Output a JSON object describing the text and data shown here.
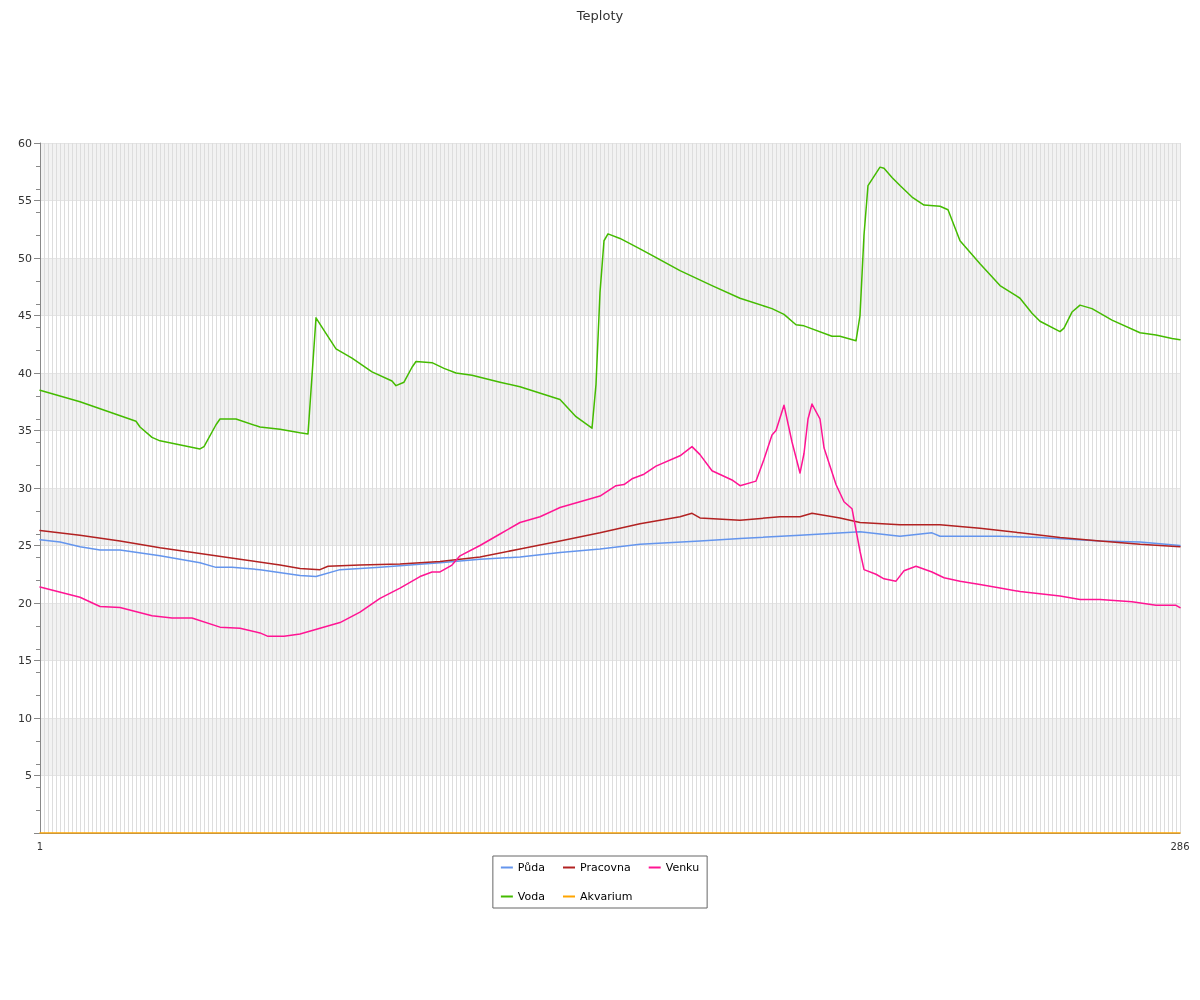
{
  "chart_data": {
    "type": "line",
    "title": "Teploty",
    "xlim": [
      1,
      286
    ],
    "xticks": [
      1,
      {
        "value": 2,
        "label": null
      },
      {
        "value": 3,
        "label": null
      },
      {
        "value": 4,
        "label": null
      },
      {
        "value": 5,
        "label": null
      },
      {
        "value": 6,
        "label": null
      },
      {
        "value": 7,
        "label": null
      },
      {
        "value": 8,
        "label": null
      },
      {
        "value": 9,
        "label": null
      },
      {
        "value": 10,
        "label": null
      },
      {
        "value": 11,
        "label": null
      },
      {
        "value": 12,
        "label": null
      },
      {
        "value": 13,
        "label": null
      },
      {
        "value": 14,
        "label": null
      },
      {
        "value": 15,
        "label": null
      },
      {
        "value": 16,
        "label": null
      },
      {
        "value": 17,
        "label": null
      },
      {
        "value": 18,
        "label": null
      },
      {
        "value": 19,
        "label": null
      },
      {
        "value": 20,
        "label": null
      },
      {
        "value": 21,
        "label": null
      },
      {
        "value": 22,
        "label": null
      },
      {
        "value": 23,
        "label": null
      },
      {
        "value": 24,
        "label": null
      },
      {
        "value": 25,
        "label": null
      },
      {
        "value": 26,
        "label": null
      },
      {
        "value": 27,
        "label": null
      },
      {
        "value": 28,
        "label": null
      },
      {
        "value": 29,
        "label": null
      },
      {
        "value": 30,
        "label": null
      },
      {
        "value": 31,
        "label": null
      },
      {
        "value": 32,
        "label": null
      },
      {
        "value": 33,
        "label": null
      },
      {
        "value": 34,
        "label": null
      },
      {
        "value": 35,
        "label": null
      },
      {
        "value": 36,
        "label": null
      },
      {
        "value": 37,
        "label": null
      },
      {
        "value": 38,
        "label": null
      },
      {
        "value": 39,
        "label": null
      },
      {
        "value": 40,
        "label": null
      },
      {
        "value": 41,
        "label": null
      },
      {
        "value": 42,
        "label": null
      },
      {
        "value": 43,
        "label": null
      },
      {
        "value": 44,
        "label": null
      },
      {
        "value": 45,
        "label": null
      },
      {
        "value": 46,
        "label": null
      },
      {
        "value": 47,
        "label": null
      },
      {
        "value": 48,
        "label": null
      },
      {
        "value": 49,
        "label": null
      },
      {
        "value": 50,
        "label": null
      },
      {
        "value": 51,
        "label": null
      },
      {
        "value": 52,
        "label": null
      },
      {
        "value": 53,
        "label": null
      },
      {
        "value": 54,
        "label": null
      },
      {
        "value": 55,
        "label": null
      },
      {
        "value": 56,
        "label": null
      },
      {
        "value": 57,
        "label": null
      },
      {
        "value": 58,
        "label": null
      },
      {
        "value": 59,
        "label": null
      },
      {
        "value": 60,
        "label": null
      },
      {
        "value": 61,
        "label": null
      },
      {
        "value": 62,
        "label": null
      },
      {
        "value": 63,
        "label": null
      },
      {
        "value": 64,
        "label": null
      },
      {
        "value": 65,
        "label": null
      },
      {
        "value": 66,
        "label": null
      },
      {
        "value": 67,
        "label": null
      },
      {
        "value": 68,
        "label": null
      },
      {
        "value": 69,
        "label": null
      },
      {
        "value": 70,
        "label": null
      },
      {
        "value": 71,
        "label": null
      },
      {
        "value": 72,
        "label": null
      },
      {
        "value": 73,
        "label": null
      },
      {
        "value": 74,
        "label": null
      },
      {
        "value": 75,
        "label": null
      },
      {
        "value": 76,
        "label": null
      },
      {
        "value": 77,
        "label": null
      },
      {
        "value": 78,
        "label": null
      },
      {
        "value": 79,
        "label": null
      },
      {
        "value": 80,
        "label": null
      },
      {
        "value": 81,
        "label": null
      },
      {
        "value": 82,
        "label": null
      },
      {
        "value": 83,
        "label": null
      },
      {
        "value": 84,
        "label": null
      },
      {
        "value": 85,
        "label": null
      },
      {
        "value": 86,
        "label": null
      },
      {
        "value": 87,
        "label": null
      },
      {
        "value": 88,
        "label": null
      },
      {
        "value": 89,
        "label": null
      },
      {
        "value": 90,
        "label": null
      },
      {
        "value": 91,
        "label": null
      },
      {
        "value": 92,
        "label": null
      },
      {
        "value": 93,
        "label": null
      },
      {
        "value": 94,
        "label": null
      },
      {
        "value": 95,
        "label": null
      },
      {
        "value": 96,
        "label": null
      },
      {
        "value": 97,
        "label": null
      },
      {
        "value": 98,
        "label": null
      },
      {
        "value": 99,
        "label": null
      },
      {
        "value": 100,
        "label": null
      },
      {
        "value": 101,
        "label": null
      },
      {
        "value": 102,
        "label": null
      },
      {
        "value": 103,
        "label": null
      },
      {
        "value": 104,
        "label": null
      },
      {
        "value": 105,
        "label": null
      },
      {
        "value": 106,
        "label": null
      },
      {
        "value": 107,
        "label": null
      },
      {
        "value": 108,
        "label": null
      },
      {
        "value": 109,
        "label": null
      },
      {
        "value": 110,
        "label": null
      },
      {
        "value": 111,
        "label": null
      },
      {
        "value": 112,
        "label": null
      },
      {
        "value": 113,
        "label": null
      },
      {
        "value": 114,
        "label": null
      },
      {
        "value": 115,
        "label": null
      },
      {
        "value": 116,
        "label": null
      },
      {
        "value": 117,
        "label": null
      },
      {
        "value": 118,
        "label": null
      },
      {
        "value": 119,
        "label": null
      },
      {
        "value": 120,
        "label": null
      },
      {
        "value": 121,
        "label": null
      },
      {
        "value": 122,
        "label": null
      },
      {
        "value": 123,
        "label": null
      },
      {
        "value": 124,
        "label": null
      },
      {
        "value": 125,
        "label": null
      },
      {
        "value": 126,
        "label": null
      },
      {
        "value": 127,
        "label": null
      },
      {
        "value": 128,
        "label": null
      },
      {
        "value": 129,
        "label": null
      },
      {
        "value": 130,
        "label": null
      },
      {
        "value": 131,
        "label": null
      },
      {
        "value": 132,
        "label": null
      },
      {
        "value": 133,
        "label": null
      },
      {
        "value": 134,
        "label": null
      },
      {
        "value": 135,
        "label": null
      },
      {
        "value": 136,
        "label": null
      },
      {
        "value": 137,
        "label": null
      },
      {
        "value": 138,
        "label": null
      },
      {
        "value": 139,
        "label": null
      },
      {
        "value": 140,
        "label": null
      },
      {
        "value": 141,
        "label": null
      },
      {
        "value": 142,
        "label": null
      },
      {
        "value": 143,
        "label": null
      },
      {
        "value": 144,
        "label": null
      },
      {
        "value": 145,
        "label": null
      },
      {
        "value": 146,
        "label": null
      },
      {
        "value": 147,
        "label": null
      },
      {
        "value": 148,
        "label": null
      },
      {
        "value": 149,
        "label": null
      },
      {
        "value": 150,
        "label": null
      },
      {
        "value": 151,
        "label": null
      },
      {
        "value": 152,
        "label": null
      },
      {
        "value": 153,
        "label": null
      },
      {
        "value": 154,
        "label": null
      },
      {
        "value": 155,
        "label": null
      },
      {
        "value": 156,
        "label": null
      },
      {
        "value": 157,
        "label": null
      },
      {
        "value": 158,
        "label": null
      },
      {
        "value": 159,
        "label": null
      },
      {
        "value": 160,
        "label": null
      },
      {
        "value": 161,
        "label": null
      },
      {
        "value": 162,
        "label": null
      },
      {
        "value": 163,
        "label": null
      },
      {
        "value": 164,
        "label": null
      },
      {
        "value": 165,
        "label": null
      },
      {
        "value": 166,
        "label": null
      },
      {
        "value": 167,
        "label": null
      },
      {
        "value": 168,
        "label": null
      },
      {
        "value": 169,
        "label": null
      },
      {
        "value": 170,
        "label": null
      },
      {
        "value": 171,
        "label": null
      },
      {
        "value": 172,
        "label": null
      },
      {
        "value": 173,
        "label": null
      },
      {
        "value": 174,
        "label": null
      },
      {
        "value": 175,
        "label": null
      },
      {
        "value": 176,
        "label": null
      },
      {
        "value": 177,
        "label": null
      },
      {
        "value": 178,
        "label": null
      },
      {
        "value": 179,
        "label": null
      },
      {
        "value": 180,
        "label": null
      },
      {
        "value": 181,
        "label": null
      },
      {
        "value": 182,
        "label": null
      },
      {
        "value": 183,
        "label": null
      },
      {
        "value": 184,
        "label": null
      },
      {
        "value": 185,
        "label": null
      },
      {
        "value": 186,
        "label": null
      },
      {
        "value": 187,
        "label": null
      },
      {
        "value": 188,
        "label": null
      },
      {
        "value": 189,
        "label": null
      },
      {
        "value": 190,
        "label": null
      },
      {
        "value": 191,
        "label": null
      },
      {
        "value": 192,
        "label": null
      },
      {
        "value": 193,
        "label": null
      },
      {
        "value": 194,
        "label": null
      },
      {
        "value": 195,
        "label": null
      },
      {
        "value": 196,
        "label": null
      },
      {
        "value": 197,
        "label": null
      },
      {
        "value": 198,
        "label": null
      },
      {
        "value": 199,
        "label": null
      },
      {
        "value": 200,
        "label": null
      },
      {
        "value": 201,
        "label": null
      },
      {
        "value": 202,
        "label": null
      },
      {
        "value": 203,
        "label": null
      },
      {
        "value": 204,
        "label": null
      },
      {
        "value": 205,
        "label": null
      },
      {
        "value": 206,
        "label": null
      },
      {
        "value": 207,
        "label": null
      },
      {
        "value": 208,
        "label": null
      },
      {
        "value": 209,
        "label": null
      },
      {
        "value": 210,
        "label": null
      },
      {
        "value": 211,
        "label": null
      },
      {
        "value": 212,
        "label": null
      },
      {
        "value": 213,
        "label": null
      },
      {
        "value": 214,
        "label": null
      },
      {
        "value": 215,
        "label": null
      },
      {
        "value": 216,
        "label": null
      },
      {
        "value": 217,
        "label": null
      },
      {
        "value": 218,
        "label": null
      },
      {
        "value": 219,
        "label": null
      },
      {
        "value": 220,
        "label": null
      },
      {
        "value": 221,
        "label": null
      },
      {
        "value": 222,
        "label": null
      },
      {
        "value": 223,
        "label": null
      },
      {
        "value": 224,
        "label": null
      },
      {
        "value": 225,
        "label": null
      },
      {
        "value": 226,
        "label": null
      },
      {
        "value": 227,
        "label": null
      },
      {
        "value": 228,
        "label": null
      },
      {
        "value": 229,
        "label": null
      },
      {
        "value": 230,
        "label": null
      },
      {
        "value": 231,
        "label": null
      },
      {
        "value": 232,
        "label": null
      },
      {
        "value": 233,
        "label": null
      },
      {
        "value": 234,
        "label": null
      },
      {
        "value": 235,
        "label": null
      },
      {
        "value": 236,
        "label": null
      },
      {
        "value": 237,
        "label": null
      },
      {
        "value": 238,
        "label": null
      },
      {
        "value": 239,
        "label": null
      },
      {
        "value": 240,
        "label": null
      },
      {
        "value": 241,
        "label": null
      },
      {
        "value": 242,
        "label": null
      },
      {
        "value": 243,
        "label": null
      },
      {
        "value": 244,
        "label": null
      },
      {
        "value": 245,
        "label": null
      },
      {
        "value": 246,
        "label": null
      },
      {
        "value": 247,
        "label": null
      },
      {
        "value": 248,
        "label": null
      },
      {
        "value": 249,
        "label": null
      },
      {
        "value": 250,
        "label": null
      },
      {
        "value": 251,
        "label": null
      },
      {
        "value": 252,
        "label": null
      },
      {
        "value": 253,
        "label": null
      },
      {
        "value": 254,
        "label": null
      },
      {
        "value": 255,
        "label": null
      },
      {
        "value": 256,
        "label": null
      },
      {
        "value": 257,
        "label": null
      },
      {
        "value": 258,
        "label": null
      },
      {
        "value": 259,
        "label": null
      },
      {
        "value": 260,
        "label": null
      },
      {
        "value": 261,
        "label": null
      },
      {
        "value": 262,
        "label": null
      },
      {
        "value": 263,
        "label": null
      },
      {
        "value": 264,
        "label": null
      },
      {
        "value": 265,
        "label": null
      },
      {
        "value": 266,
        "label": null
      },
      {
        "value": 267,
        "label": null
      },
      {
        "value": 268,
        "label": null
      },
      {
        "value": 269,
        "label": null
      },
      {
        "value": 270,
        "label": null
      },
      {
        "value": 271,
        "label": null
      },
      {
        "value": 272,
        "label": null
      },
      {
        "value": 273,
        "label": null
      },
      {
        "value": 274,
        "label": null
      },
      {
        "value": 275,
        "label": null
      },
      {
        "value": 276,
        "label": null
      },
      {
        "value": 277,
        "label": null
      },
      {
        "value": 278,
        "label": null
      },
      {
        "value": 279,
        "label": null
      },
      {
        "value": 280,
        "label": null
      },
      {
        "value": 281,
        "label": null
      },
      {
        "value": 282,
        "label": null
      },
      {
        "value": 283,
        "label": null
      },
      {
        "value": 284,
        "label": null
      },
      {
        "value": 285,
        "label": null
      },
      286
    ],
    "ylim": [
      0,
      60
    ],
    "yticks": [
      {
        "value": 0,
        "label": null
      },
      5,
      10,
      15,
      20,
      25,
      30,
      35,
      40,
      45,
      50,
      55,
      60
    ],
    "grid": true,
    "legend": "bottom",
    "marker": "none",
    "line_style": "solid",
    "series": [
      {
        "name": "Půda",
        "color": "#6495ed",
        "x": [
          1,
          6,
          11,
          16,
          21,
          31,
          41,
          45,
          49,
          56,
          66,
          70,
          76,
          86,
          101,
          111,
          121,
          131,
          141,
          151,
          166,
          176,
          191,
          206,
          211,
          216,
          224,
          226,
          241,
          251,
          266,
          276,
          286
        ],
        "values": [
          25.5,
          25.3,
          24.9,
          24.6,
          24.6,
          24.1,
          23.5,
          23.1,
          23.1,
          22.9,
          22.4,
          22.3,
          22.9,
          23.1,
          23.5,
          23.8,
          24.0,
          24.4,
          24.7,
          25.1,
          25.4,
          25.6,
          25.9,
          26.2,
          26.0,
          25.8,
          26.1,
          25.8,
          25.8,
          25.7,
          25.4,
          25.3,
          25.0
        ]
      },
      {
        "name": "Voda",
        "color": "#44bb00",
        "x": [
          1,
          11,
          25,
          26,
          29,
          31,
          41,
          42,
          45,
          46,
          50,
          56,
          61,
          66,
          68,
          70,
          72,
          75,
          79,
          84,
          89,
          90,
          92,
          94,
          95,
          99,
          102,
          105,
          109,
          116,
          121,
          131,
          135,
          139,
          140,
          141,
          142,
          143,
          146,
          151,
          161,
          169,
          176,
          184,
          187,
          190,
          192,
          199,
          201,
          205,
          206,
          207,
          208,
          211,
          212,
          214,
          216,
          219,
          222,
          226,
          228,
          231,
          236,
          241,
          246,
          249,
          251,
          256,
          257,
          259,
          261,
          264,
          269,
          276,
          280,
          284,
          286
        ],
        "values": [
          38.5,
          37.5,
          35.8,
          35.3,
          34.4,
          34.1,
          33.4,
          33.6,
          35.5,
          36.0,
          36.0,
          35.3,
          35.1,
          34.8,
          34.7,
          44.8,
          43.7,
          42.1,
          41.3,
          40.1,
          39.3,
          38.9,
          39.2,
          40.5,
          41.0,
          40.9,
          40.4,
          40.0,
          39.8,
          39.2,
          38.8,
          37.7,
          36.2,
          35.2,
          39.0,
          47.0,
          51.5,
          52.1,
          51.7,
          50.8,
          48.9,
          47.6,
          46.5,
          45.6,
          45.1,
          44.2,
          44.1,
          43.2,
          43.2,
          42.8,
          45.0,
          52.0,
          56.3,
          57.9,
          57.8,
          57.0,
          56.3,
          55.3,
          54.6,
          54.5,
          54.2,
          51.5,
          49.5,
          47.6,
          46.5,
          45.2,
          44.5,
          43.6,
          43.9,
          45.3,
          45.9,
          45.6,
          44.6,
          43.5,
          43.3,
          43.0,
          42.9
        ]
      },
      {
        "name": "Pracovna",
        "color": "#b22222",
        "x": [
          1,
          11,
          21,
          31,
          41,
          51,
          61,
          66,
          71,
          73,
          81,
          91,
          101,
          111,
          121,
          131,
          141,
          151,
          161,
          164,
          166,
          176,
          186,
          191,
          194,
          201,
          206,
          216,
          226,
          236,
          246,
          256,
          266,
          276,
          286
        ],
        "values": [
          26.3,
          25.9,
          25.4,
          24.8,
          24.3,
          23.8,
          23.3,
          23.0,
          22.9,
          23.2,
          23.3,
          23.4,
          23.6,
          24.0,
          24.7,
          25.4,
          26.1,
          26.9,
          27.5,
          27.8,
          27.4,
          27.2,
          27.5,
          27.5,
          27.8,
          27.4,
          27.0,
          26.8,
          26.8,
          26.5,
          26.1,
          25.7,
          25.4,
          25.1,
          24.9
        ]
      },
      {
        "name": "Akvarium",
        "color": "#ffa500",
        "x": [
          1,
          286
        ],
        "values": [
          0,
          0
        ]
      },
      {
        "name": "Venku",
        "color": "#ff1493",
        "x": [
          1,
          11,
          16,
          21,
          29,
          34,
          39,
          46,
          51,
          56,
          58,
          62,
          66,
          71,
          76,
          81,
          86,
          91,
          96,
          99,
          101,
          104,
          106,
          111,
          116,
          121,
          126,
          131,
          136,
          141,
          145,
          147,
          149,
          152,
          155,
          161,
          164,
          166,
          169,
          174,
          176,
          180,
          182,
          184,
          185,
          187,
          189,
          191,
          192,
          193,
          194,
          196,
          197,
          200,
          202,
          204,
          206,
          207,
          210,
          212,
          215,
          217,
          220,
          224,
          227,
          231,
          236,
          241,
          246,
          251,
          256,
          261,
          266,
          274,
          280,
          285,
          286
        ],
        "values": [
          21.4,
          20.5,
          19.7,
          19.6,
          18.9,
          18.7,
          18.7,
          17.9,
          17.8,
          17.4,
          17.1,
          17.1,
          17.3,
          17.8,
          18.3,
          19.2,
          20.4,
          21.3,
          22.3,
          22.7,
          22.7,
          23.3,
          24.1,
          25.0,
          26.0,
          27.0,
          27.5,
          28.3,
          28.8,
          29.3,
          30.2,
          30.3,
          30.8,
          31.2,
          31.9,
          32.8,
          33.6,
          32.9,
          31.5,
          30.7,
          30.2,
          30.6,
          32.5,
          34.6,
          35.0,
          37.2,
          34.0,
          31.3,
          33.0,
          36.0,
          37.3,
          36.0,
          33.5,
          30.3,
          28.8,
          28.2,
          24.5,
          22.9,
          22.5,
          22.1,
          21.9,
          22.8,
          23.2,
          22.7,
          22.2,
          21.9,
          21.6,
          21.3,
          21.0,
          20.8,
          20.6,
          20.3,
          20.3,
          20.1,
          19.8,
          19.8,
          19.6
        ]
      }
    ]
  }
}
